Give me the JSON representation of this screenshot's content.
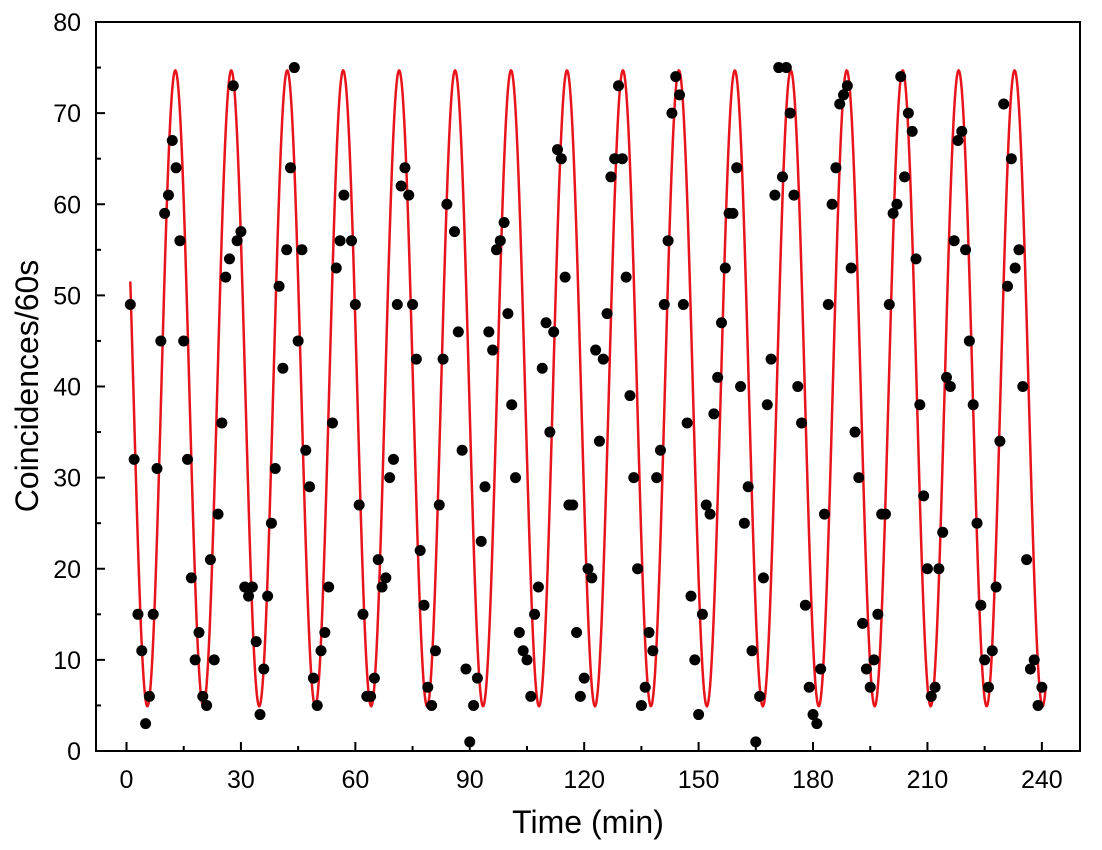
{
  "chart_data": {
    "type": "scatter",
    "title": "",
    "xlabel": "Time (min)",
    "ylabel": "Coincidences/60s",
    "xlim": [
      -8,
      250
    ],
    "ylim": [
      0,
      80
    ],
    "xticks": [
      0,
      30,
      60,
      90,
      120,
      150,
      180,
      210,
      240
    ],
    "yticks": [
      0,
      10,
      20,
      30,
      40,
      50,
      60,
      70,
      80
    ],
    "grid": false,
    "legend": "none",
    "colors": {
      "points": "#000000",
      "fit": "#e8141b",
      "axes": "#000000"
    },
    "series": [
      {
        "kind": "points",
        "points": [
          [
            1,
            49
          ],
          [
            2,
            32
          ],
          [
            3,
            15
          ],
          [
            4,
            11
          ],
          [
            5,
            3
          ],
          [
            6,
            6
          ],
          [
            7,
            15
          ],
          [
            8,
            31
          ],
          [
            9,
            45
          ],
          [
            10,
            59
          ],
          [
            11,
            61
          ],
          [
            12,
            67
          ],
          [
            13,
            64
          ],
          [
            14,
            56
          ],
          [
            15,
            45
          ],
          [
            16,
            32
          ],
          [
            17,
            19
          ],
          [
            18,
            10
          ],
          [
            19,
            13
          ],
          [
            20,
            6
          ],
          [
            21,
            5
          ],
          [
            22,
            21
          ],
          [
            23,
            10
          ],
          [
            24,
            26
          ],
          [
            25,
            36
          ],
          [
            26,
            52
          ],
          [
            27,
            54
          ],
          [
            28,
            73
          ],
          [
            29,
            56
          ],
          [
            30,
            57
          ],
          [
            31,
            18
          ],
          [
            32,
            17
          ],
          [
            33,
            18
          ],
          [
            34,
            12
          ],
          [
            35,
            4
          ],
          [
            36,
            9
          ],
          [
            37,
            17
          ],
          [
            38,
            25
          ],
          [
            39,
            31
          ],
          [
            40,
            51
          ],
          [
            41,
            42
          ],
          [
            42,
            55
          ],
          [
            43,
            64
          ],
          [
            44,
            75
          ],
          [
            45,
            45
          ],
          [
            46,
            55
          ],
          [
            47,
            33
          ],
          [
            48,
            29
          ],
          [
            49,
            8
          ],
          [
            50,
            5
          ],
          [
            51,
            11
          ],
          [
            52,
            13
          ],
          [
            53,
            18
          ],
          [
            54,
            36
          ],
          [
            55,
            53
          ],
          [
            56,
            56
          ],
          [
            57,
            61
          ],
          [
            59,
            56
          ],
          [
            60,
            49
          ],
          [
            61,
            27
          ],
          [
            62,
            15
          ],
          [
            63,
            6
          ],
          [
            64,
            6
          ],
          [
            65,
            8
          ],
          [
            66,
            21
          ],
          [
            67,
            18
          ],
          [
            68,
            19
          ],
          [
            69,
            30
          ],
          [
            70,
            32
          ],
          [
            71,
            49
          ],
          [
            72,
            62
          ],
          [
            73,
            64
          ],
          [
            74,
            61
          ],
          [
            75,
            49
          ],
          [
            76,
            43
          ],
          [
            77,
            22
          ],
          [
            78,
            16
          ],
          [
            79,
            7
          ],
          [
            80,
            5
          ],
          [
            81,
            11
          ],
          [
            82,
            27
          ],
          [
            83,
            43
          ],
          [
            84,
            60
          ],
          [
            86,
            57
          ],
          [
            87,
            46
          ],
          [
            88,
            33
          ],
          [
            89,
            9
          ],
          [
            90,
            1
          ],
          [
            91,
            5
          ],
          [
            92,
            8
          ],
          [
            93,
            23
          ],
          [
            94,
            29
          ],
          [
            95,
            46
          ],
          [
            96,
            44
          ],
          [
            97,
            55
          ],
          [
            98,
            56
          ],
          [
            99,
            58
          ],
          [
            100,
            48
          ],
          [
            101,
            38
          ],
          [
            102,
            30
          ],
          [
            103,
            13
          ],
          [
            104,
            11
          ],
          [
            105,
            10
          ],
          [
            106,
            6
          ],
          [
            107,
            15
          ],
          [
            108,
            18
          ],
          [
            109,
            42
          ],
          [
            110,
            47
          ],
          [
            111,
            35
          ],
          [
            112,
            46
          ],
          [
            113,
            66
          ],
          [
            114,
            65
          ],
          [
            115,
            52
          ],
          [
            116,
            27
          ],
          [
            117,
            27
          ],
          [
            118,
            13
          ],
          [
            119,
            6
          ],
          [
            120,
            8
          ],
          [
            121,
            20
          ],
          [
            122,
            19
          ],
          [
            123,
            44
          ],
          [
            124,
            34
          ],
          [
            125,
            43
          ],
          [
            126,
            48
          ],
          [
            127,
            63
          ],
          [
            128,
            65
          ],
          [
            129,
            73
          ],
          [
            130,
            65
          ],
          [
            131,
            52
          ],
          [
            132,
            39
          ],
          [
            133,
            30
          ],
          [
            134,
            20
          ],
          [
            135,
            5
          ],
          [
            136,
            7
          ],
          [
            137,
            13
          ],
          [
            138,
            11
          ],
          [
            139,
            30
          ],
          [
            140,
            33
          ],
          [
            141,
            49
          ],
          [
            142,
            56
          ],
          [
            143,
            70
          ],
          [
            144,
            74
          ],
          [
            145,
            72
          ],
          [
            146,
            49
          ],
          [
            147,
            36
          ],
          [
            148,
            17
          ],
          [
            149,
            10
          ],
          [
            150,
            4
          ],
          [
            151,
            15
          ],
          [
            152,
            27
          ],
          [
            153,
            26
          ],
          [
            154,
            37
          ],
          [
            155,
            41
          ],
          [
            156,
            47
          ],
          [
            157,
            53
          ],
          [
            158,
            59
          ],
          [
            159,
            59
          ],
          [
            160,
            64
          ],
          [
            161,
            40
          ],
          [
            162,
            25
          ],
          [
            163,
            29
          ],
          [
            164,
            11
          ],
          [
            165,
            1
          ],
          [
            166,
            6
          ],
          [
            167,
            19
          ],
          [
            168,
            38
          ],
          [
            169,
            43
          ],
          [
            170,
            61
          ],
          [
            171,
            75
          ],
          [
            172,
            63
          ],
          [
            173,
            75
          ],
          [
            174,
            70
          ],
          [
            175,
            61
          ],
          [
            176,
            40
          ],
          [
            177,
            36
          ],
          [
            178,
            16
          ],
          [
            179,
            7
          ],
          [
            180,
            4
          ],
          [
            181,
            3
          ],
          [
            182,
            9
          ],
          [
            183,
            26
          ],
          [
            184,
            49
          ],
          [
            185,
            60
          ],
          [
            186,
            64
          ],
          [
            187,
            71
          ],
          [
            188,
            72
          ],
          [
            189,
            73
          ],
          [
            190,
            53
          ],
          [
            191,
            35
          ],
          [
            192,
            30
          ],
          [
            193,
            14
          ],
          [
            194,
            9
          ],
          [
            195,
            7
          ],
          [
            196,
            10
          ],
          [
            197,
            15
          ],
          [
            198,
            26
          ],
          [
            199,
            26
          ],
          [
            200,
            49
          ],
          [
            201,
            59
          ],
          [
            202,
            60
          ],
          [
            203,
            74
          ],
          [
            204,
            63
          ],
          [
            205,
            70
          ],
          [
            206,
            68
          ],
          [
            207,
            54
          ],
          [
            208,
            38
          ],
          [
            209,
            28
          ],
          [
            210,
            20
          ],
          [
            211,
            6
          ],
          [
            212,
            7
          ],
          [
            213,
            20
          ],
          [
            214,
            24
          ],
          [
            215,
            41
          ],
          [
            216,
            40
          ],
          [
            217,
            56
          ],
          [
            218,
            67
          ],
          [
            219,
            68
          ],
          [
            220,
            55
          ],
          [
            221,
            45
          ],
          [
            222,
            38
          ],
          [
            223,
            25
          ],
          [
            224,
            16
          ],
          [
            225,
            10
          ],
          [
            226,
            7
          ],
          [
            227,
            11
          ],
          [
            228,
            18
          ],
          [
            229,
            34
          ],
          [
            230,
            71
          ],
          [
            231,
            51
          ],
          [
            232,
            65
          ],
          [
            233,
            53
          ],
          [
            234,
            55
          ],
          [
            235,
            40
          ],
          [
            236,
            21
          ],
          [
            237,
            9
          ],
          [
            238,
            10
          ],
          [
            239,
            5
          ],
          [
            240,
            7
          ]
        ]
      },
      {
        "kind": "fit-line",
        "x_start": 1,
        "x_end": 241,
        "mean": 39.8,
        "amplitude": 34.9,
        "period": 14.67,
        "phase": 0.8
      }
    ]
  }
}
